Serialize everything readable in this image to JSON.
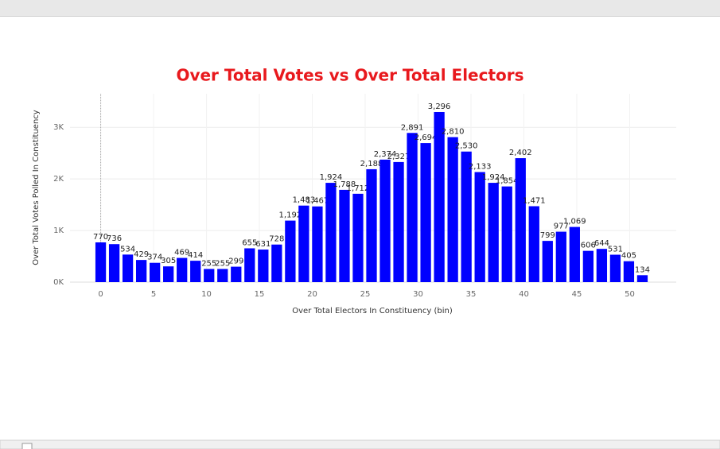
{
  "chart_data": {
    "type": "bar",
    "title": "Over Total Votes vs Over Total Electors",
    "x_label": "Over Total Electors  In Constituency (bin)",
    "y_label": "Over Total Votes Polled  In Constituency",
    "color": "#0000ff",
    "x": [
      0,
      1.28,
      2.56,
      3.84,
      5.12,
      6.4,
      7.68,
      8.96,
      10.24,
      11.52,
      12.8,
      14.08,
      15.36,
      16.64,
      17.92,
      19.2,
      20.48,
      21.76,
      23.04,
      24.32,
      25.6,
      26.88,
      28.16,
      29.44,
      30.72,
      32,
      33.28,
      34.56,
      35.84,
      37.12,
      38.4,
      39.68,
      40.96,
      42.24,
      43.52,
      44.8,
      46.08,
      47.36,
      48.64,
      49.92,
      51.2
    ],
    "values": [
      770,
      736,
      534,
      429,
      374,
      305,
      469,
      414,
      255,
      255,
      299,
      655,
      631,
      728,
      1192,
      1483,
      1467,
      1924,
      1788,
      1712,
      2188,
      2374,
      2327,
      2891,
      2694,
      3296,
      2810,
      2530,
      2133,
      1924,
      1854,
      2402,
      1471,
      799,
      977,
      1069,
      606,
      644,
      531,
      405,
      134
    ],
    "value_labels": [
      "770",
      "736",
      "534",
      "429",
      "374",
      "305",
      "469",
      "414",
      "255",
      "255",
      "299",
      "655",
      "631",
      "728",
      "1,192",
      "1,483",
      "1,467",
      "1,924",
      "1,788",
      "1,712",
      "2,188",
      "2,374",
      "2,327",
      "2,891",
      "2,694",
      "3,296",
      "2,810",
      "2,530",
      "2,133",
      "1,924",
      "1,854",
      "2,402",
      "1,471",
      "799",
      "977",
      "1,069",
      "606",
      "644",
      "531",
      "405",
      "134"
    ],
    "xlim": [
      -2.9,
      54.4
    ],
    "xticks": [
      0,
      5,
      10,
      15,
      20,
      25,
      30,
      35,
      40,
      45,
      50
    ],
    "ylim": [
      0,
      3650
    ],
    "yticks": [
      {
        "value": 0,
        "label": "0K"
      },
      {
        "value": 1000,
        "label": "1K"
      },
      {
        "value": 2000,
        "label": "2K"
      },
      {
        "value": 3000,
        "label": "3K"
      }
    ],
    "grid": true
  }
}
